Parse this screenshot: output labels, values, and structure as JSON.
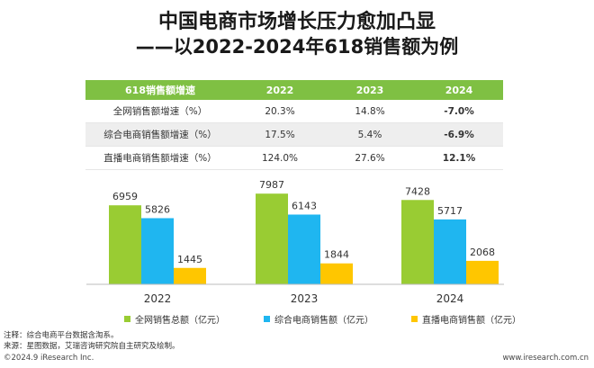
{
  "title_line1": "中国电商市场增长压力愈加凸显",
  "title_line2": "——以2022-2024年618销售额为例",
  "table": {
    "headers": [
      "618销售额增速",
      "2022",
      "2023",
      "2024"
    ],
    "rows": [
      {
        "label": "全网销售额增速（%）",
        "values": [
          "20.3%",
          "14.8%",
          "-7.0%"
        ],
        "bold_last": true
      },
      {
        "label": "综合电商销售额增速（%）",
        "values": [
          "17.5%",
          "5.4%",
          "-6.9%"
        ],
        "bold_last": true
      },
      {
        "label": "直播电商销售额增速（%）",
        "values": [
          "124.0%",
          "27.6%",
          "12.1%"
        ],
        "bold_last": true
      }
    ]
  },
  "chart_data": {
    "type": "bar",
    "categories": [
      "2022",
      "2023",
      "2024"
    ],
    "series": [
      {
        "name": "全网销售总额（亿元）",
        "values": [
          6959,
          7987,
          7428
        ],
        "color": "#99cc33"
      },
      {
        "name": "综合电商销售额（亿元）",
        "values": [
          5826,
          6143,
          5717
        ],
        "color": "#1fb6f0"
      },
      {
        "name": "直播电商销售额（亿元）",
        "values": [
          1445,
          1844,
          2068
        ],
        "color": "#ffc600"
      }
    ],
    "ylim": [
      0,
      8400
    ],
    "grid": false,
    "legend": "bottom"
  },
  "notes": {
    "note": "注释：综合电商平台数据含淘系。",
    "source": "来源：星图数据，艾瑞咨询研究院自主研究及绘制。"
  },
  "footer": {
    "copyright": "©2024.9 iResearch Inc.",
    "website": "www.iresearch.com.cn"
  }
}
